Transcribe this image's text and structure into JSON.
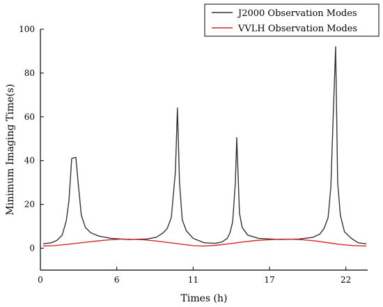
{
  "chart_data": {
    "type": "line",
    "title": "",
    "xlabel": "Times (h)",
    "ylabel": "Minimum Imaging Time(s)",
    "xlim": [
      0,
      24
    ],
    "ylim": [
      -10,
      100
    ],
    "x_ticks": [
      0,
      5.6,
      11.2,
      16.8,
      22.4
    ],
    "x_tick_labels": [
      "0",
      "6",
      "11",
      "17",
      "22"
    ],
    "y_ticks": [
      0,
      20,
      40,
      60,
      80,
      100
    ],
    "y_tick_labels": [
      "0",
      "20",
      "40",
      "60",
      "80",
      "100"
    ],
    "legend_position": "top-right",
    "grid": false,
    "series": [
      {
        "name": "J2000 Observation Modes",
        "color": "#333333",
        "x": [
          0.2,
          0.8,
          1.2,
          1.6,
          1.9,
          2.1,
          2.3,
          2.6,
          2.8,
          3.0,
          3.3,
          3.7,
          4.3,
          5.2,
          6.5,
          7.8,
          8.5,
          9.0,
          9.3,
          9.6,
          9.9,
          10.05,
          10.2,
          10.4,
          10.7,
          11.2,
          12.0,
          12.8,
          13.3,
          13.7,
          13.9,
          14.1,
          14.3,
          14.4,
          14.6,
          14.8,
          15.2,
          16.0,
          17.5,
          19.0,
          20.0,
          20.5,
          20.8,
          21.1,
          21.3,
          21.5,
          21.65,
          21.8,
          22.0,
          22.3,
          22.8,
          23.3,
          23.9
        ],
        "y": [
          2,
          2.5,
          3.5,
          6,
          12.5,
          22,
          41,
          41.5,
          28,
          15,
          9.5,
          7,
          5.5,
          4.5,
          4,
          4.2,
          5,
          7,
          9,
          14,
          35,
          64,
          30,
          13,
          8,
          4.5,
          2.5,
          2.2,
          2.8,
          4.5,
          7,
          12,
          30,
          50.5,
          16,
          9.5,
          6,
          4.5,
          4,
          4.2,
          5,
          6.5,
          9,
          14,
          28,
          65,
          92,
          30,
          15,
          7.5,
          4.5,
          2.5,
          2
        ]
      },
      {
        "name": "VVLH Observation Modes",
        "color": "#d62728",
        "x": [
          0.2,
          1.0,
          2.0,
          3.0,
          4.0,
          5.0,
          5.9,
          6.5,
          7.5,
          8.5,
          9.5,
          10.5,
          11.2,
          11.9,
          12.8,
          13.8,
          14.8,
          15.8,
          16.8,
          17.7,
          18.3,
          19.2,
          20.2,
          21.2,
          22.0,
          22.9,
          23.9
        ],
        "y": [
          1,
          1.2,
          1.8,
          2.5,
          3.2,
          3.8,
          4.1,
          4.1,
          3.9,
          3.3,
          2.5,
          1.7,
          1.2,
          1,
          1.3,
          2,
          2.8,
          3.5,
          3.9,
          4.1,
          4.1,
          3.9,
          3.3,
          2.4,
          1.7,
          1.2,
          1
        ]
      }
    ]
  }
}
